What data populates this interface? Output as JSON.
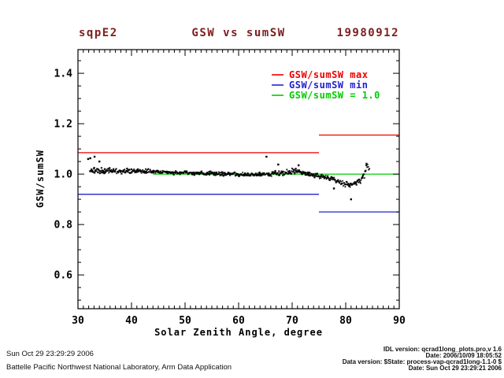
{
  "header": {
    "site": "sqpE2",
    "title": "GSW vs sumSW",
    "date": "19980912",
    "color": "#7e1c1c"
  },
  "footer": {
    "created": "Sun Oct 29 23:29:29 2006",
    "organization": "Battelle Pacific Northwest National Laboratory, Arm Data Application",
    "right_lines": [
      "IDL version: qcrad1long_plots.pro,v 1.6",
      "Date: 2006/10/09 18:05:52",
      "Data version: $State: process-vap-qcrad1long-1.1-0 $",
      "Date: Sun Oct 29 23:29:21 2006"
    ]
  },
  "chart_data": {
    "type": "scatter",
    "title": "GSW vs sumSW",
    "xlabel": "Solar Zenith Angle, degree",
    "ylabel": "GSW/sumSW",
    "xlim": [
      30,
      90
    ],
    "ylim": [
      0.466,
      1.494
    ],
    "xticks": [
      30,
      40,
      50,
      60,
      70,
      80,
      90
    ],
    "yticks": [
      "0.6",
      "0.8",
      "1.0",
      "1.2",
      "1.4"
    ],
    "x_minor_step": 1,
    "y_minor_step": 0.05,
    "grid": false,
    "legend_position": "top-right-inside",
    "legend": [
      {
        "label": "GSW/sumSW max",
        "color": "#ee0000"
      },
      {
        "label": "GSW/sumSW min",
        "color": "#2222cc"
      },
      {
        "label": "GSW/sumSW = 1.0",
        "color": "#00cc00"
      }
    ],
    "ref_lines": [
      {
        "name": "gsw-sumsw-max-sza-below-75",
        "y": 1.085,
        "x1": 30,
        "x2": 75,
        "color": "#ee0000"
      },
      {
        "name": "gsw-sumsw-max-sza-above-75",
        "y": 1.155,
        "x1": 75,
        "x2": 90,
        "color": "#ee0000"
      },
      {
        "name": "gsw-sumsw-min-sza-below-75",
        "y": 0.92,
        "x1": 30,
        "x2": 75,
        "color": "#2222cc"
      },
      {
        "name": "gsw-sumsw-min-sza-above-75",
        "y": 0.85,
        "x1": 75,
        "x2": 90,
        "color": "#2222cc"
      },
      {
        "name": "gsw-sumsw-unity",
        "y": 1.0,
        "x1": 44,
        "x2": 90,
        "color": "#00cc00"
      }
    ],
    "scatter_band": [
      [
        32.3,
        1.015,
        0.013
      ],
      [
        33,
        1.013,
        0.013
      ],
      [
        34,
        1.013,
        0.012
      ],
      [
        35,
        1.012,
        0.012
      ],
      [
        36,
        1.013,
        0.011
      ],
      [
        37,
        1.014,
        0.011
      ],
      [
        38,
        1.012,
        0.01
      ],
      [
        39,
        1.013,
        0.01
      ],
      [
        40,
        1.012,
        0.01
      ],
      [
        41,
        1.014,
        0.01
      ],
      [
        42,
        1.013,
        0.009
      ],
      [
        43,
        1.012,
        0.009
      ],
      [
        44,
        1.012,
        0.009
      ],
      [
        45,
        1.01,
        0.008
      ],
      [
        46,
        1.009,
        0.008
      ],
      [
        47,
        1.008,
        0.008
      ],
      [
        48,
        1.007,
        0.008
      ],
      [
        49,
        1.006,
        0.008
      ],
      [
        50,
        1.006,
        0.008
      ],
      [
        51,
        1.005,
        0.008
      ],
      [
        52,
        1.004,
        0.008
      ],
      [
        53,
        1.004,
        0.008
      ],
      [
        54,
        1.004,
        0.008
      ],
      [
        55,
        1.003,
        0.008
      ],
      [
        56,
        1.002,
        0.008
      ],
      [
        57,
        1.001,
        0.008
      ],
      [
        58,
        1.0,
        0.008
      ],
      [
        59,
        1.0,
        0.008
      ],
      [
        60,
        0.999,
        0.008
      ],
      [
        61,
        0.999,
        0.008
      ],
      [
        62,
        0.998,
        0.008
      ],
      [
        63,
        0.998,
        0.008
      ],
      [
        64,
        0.999,
        0.008
      ],
      [
        65,
        1.0,
        0.008
      ],
      [
        66,
        1.001,
        0.009
      ],
      [
        67,
        1.003,
        0.009
      ],
      [
        68,
        1.004,
        0.01
      ],
      [
        69,
        1.007,
        0.01
      ],
      [
        70,
        1.011,
        0.011
      ],
      [
        71,
        1.014,
        0.011
      ],
      [
        71.5,
        1.01,
        0.01
      ],
      [
        72,
        1.006,
        0.01
      ],
      [
        73,
        1.0,
        0.01
      ],
      [
        74,
        0.996,
        0.01
      ],
      [
        75,
        0.992,
        0.01
      ],
      [
        76,
        0.988,
        0.011
      ],
      [
        77,
        0.983,
        0.011
      ],
      [
        78,
        0.975,
        0.012
      ],
      [
        79,
        0.967,
        0.012
      ],
      [
        80,
        0.961,
        0.012
      ],
      [
        81,
        0.959,
        0.012
      ],
      [
        82,
        0.967,
        0.012
      ],
      [
        83,
        0.978,
        0.012
      ],
      [
        83.5,
        0.997,
        0.014
      ],
      [
        84,
        1.035,
        0.012
      ],
      [
        84.3,
        1.025,
        0.01
      ],
      [
        84.5,
        1.005,
        0.008
      ]
    ],
    "outliers": [
      [
        31.9,
        1.06
      ],
      [
        32.3,
        1.063
      ],
      [
        33.1,
        1.069
      ],
      [
        34.0,
        1.05
      ],
      [
        65.2,
        1.069
      ],
      [
        67.4,
        1.038
      ],
      [
        71.2,
        1.035
      ],
      [
        77.8,
        0.943
      ],
      [
        81.0,
        0.9
      ]
    ]
  }
}
